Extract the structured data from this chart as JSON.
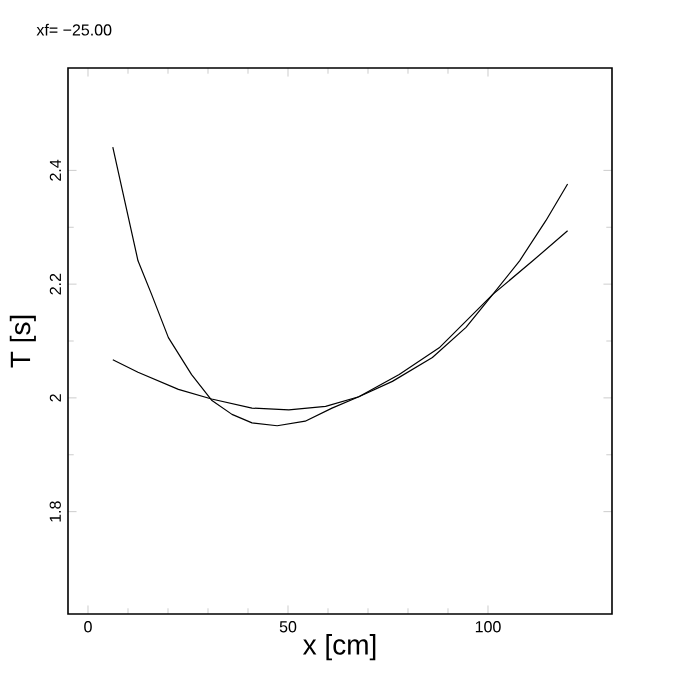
{
  "chart_data": {
    "type": "line",
    "title": "xf= −25.00",
    "xlabel": "x [cm]",
    "ylabel": "T [s]",
    "xlim": [
      -5,
      131
    ],
    "ylim": [
      1.62,
      2.58
    ],
    "xticks": [
      0,
      50,
      100
    ],
    "yticks": [
      1.8,
      2,
      2.2,
      2.4
    ],
    "grid": false,
    "marker": "none",
    "line_style": "solid",
    "series": [
      {
        "color": "#000000",
        "x": [
          6.2,
          8.4,
          12.5,
          15.9,
          20.1,
          25.9,
          30.9,
          36,
          41,
          47.3,
          54.3,
          61,
          67.7,
          76.1,
          86.1,
          94.5,
          101.2,
          107.9,
          114.5,
          119.9
        ],
        "values": [
          2.441,
          2.371,
          2.241,
          2.182,
          2.106,
          2.041,
          1.996,
          1.971,
          1.956,
          1.951,
          1.959,
          1.982,
          2.002,
          2.029,
          2.071,
          2.124,
          2.182,
          2.241,
          2.312,
          2.376
        ]
      },
      {
        "color": "#000000",
        "x": [
          6.2,
          12.5,
          22.6,
          30.9,
          41,
          50.2,
          59.4,
          67.7,
          77.8,
          87.8,
          101.2,
          111.2,
          119.9
        ],
        "values": [
          2.067,
          2.045,
          2.015,
          1.998,
          1.982,
          1.979,
          1.985,
          2.002,
          2.041,
          2.088,
          2.182,
          2.241,
          2.294
        ]
      }
    ]
  }
}
